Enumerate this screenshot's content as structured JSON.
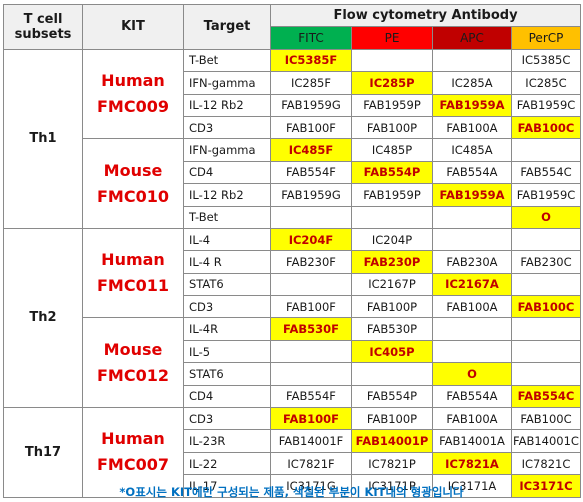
{
  "headers": {
    "subsets": "T cell subsets",
    "kit": "KIT",
    "target": "Target",
    "antibody": "Flow cytometry Antibody",
    "channels": [
      "FITC",
      "PE",
      "APC",
      "PerCP"
    ]
  },
  "groups": [
    {
      "subset": "Th1",
      "kits": [
        {
          "species": "Human",
          "code": "FMC009",
          "rows": [
            {
              "target": "T-Bet",
              "cells": [
                "IC5385F",
                "",
                "",
                "IC5385C"
              ],
              "hl": [
                true,
                false,
                false,
                false
              ]
            },
            {
              "target": "IFN-gamma",
              "cells": [
                "IC285F",
                "IC285P",
                "IC285A",
                "IC285C"
              ],
              "hl": [
                false,
                true,
                false,
                false
              ]
            },
            {
              "target": "IL-12 Rb2",
              "cells": [
                "FAB1959G",
                "FAB1959P",
                "FAB1959A",
                "FAB1959C"
              ],
              "hl": [
                false,
                false,
                true,
                false
              ]
            },
            {
              "target": "CD3",
              "cells": [
                "FAB100F",
                "FAB100P",
                "FAB100A",
                "FAB100C"
              ],
              "hl": [
                false,
                false,
                false,
                true
              ]
            }
          ]
        },
        {
          "species": "Mouse",
          "code": "FMC010",
          "rows": [
            {
              "target": "IFN-gamma",
              "cells": [
                "IC485F",
                "IC485P",
                "IC485A",
                ""
              ],
              "hl": [
                true,
                false,
                false,
                false
              ]
            },
            {
              "target": "CD4",
              "cells": [
                "FAB554F",
                "FAB554P",
                "FAB554A",
                "FAB554C"
              ],
              "hl": [
                false,
                true,
                false,
                false
              ]
            },
            {
              "target": "IL-12 Rb2",
              "cells": [
                "FAB1959G",
                "FAB1959P",
                "FAB1959A",
                "FAB1959C"
              ],
              "hl": [
                false,
                false,
                true,
                false
              ]
            },
            {
              "target": "T-Bet",
              "cells": [
                "",
                "",
                "",
                "O"
              ],
              "hl": [
                false,
                false,
                false,
                true
              ]
            }
          ]
        }
      ]
    },
    {
      "subset": "Th2",
      "kits": [
        {
          "species": "Human",
          "code": "FMC011",
          "rows": [
            {
              "target": "IL-4",
              "cells": [
                "IC204F",
                "IC204P",
                "",
                ""
              ],
              "hl": [
                true,
                false,
                false,
                false
              ]
            },
            {
              "target": "IL-4 R",
              "cells": [
                "FAB230F",
                "FAB230P",
                "FAB230A",
                "FAB230C"
              ],
              "hl": [
                false,
                true,
                false,
                false
              ]
            },
            {
              "target": "STAT6",
              "cells": [
                "",
                "IC2167P",
                "IC2167A",
                ""
              ],
              "hl": [
                false,
                false,
                true,
                false
              ]
            },
            {
              "target": "CD3",
              "cells": [
                "FAB100F",
                "FAB100P",
                "FAB100A",
                "FAB100C"
              ],
              "hl": [
                false,
                false,
                false,
                true
              ]
            }
          ]
        },
        {
          "species": "Mouse",
          "code": "FMC012",
          "rows": [
            {
              "target": "IL-4R",
              "cells": [
                "FAB530F",
                "FAB530P",
                "",
                ""
              ],
              "hl": [
                true,
                false,
                false,
                false
              ]
            },
            {
              "target": "IL-5",
              "cells": [
                "",
                "IC405P",
                "",
                ""
              ],
              "hl": [
                false,
                true,
                false,
                false
              ]
            },
            {
              "target": "STAT6",
              "cells": [
                "",
                "",
                "O",
                ""
              ],
              "hl": [
                false,
                false,
                true,
                false
              ]
            },
            {
              "target": "CD4",
              "cells": [
                "FAB554F",
                "FAB554P",
                "FAB554A",
                "FAB554C"
              ],
              "hl": [
                false,
                false,
                false,
                true
              ]
            }
          ]
        }
      ]
    },
    {
      "subset": "Th17",
      "kits": [
        {
          "species": "Human",
          "code": "FMC007",
          "rows": [
            {
              "target": "CD3",
              "cells": [
                "FAB100F",
                "FAB100P",
                "FAB100A",
                "FAB100C"
              ],
              "hl": [
                true,
                false,
                false,
                false
              ]
            },
            {
              "target": "IL-23R",
              "cells": [
                "FAB14001F",
                "FAB14001P",
                "FAB14001A",
                "FAB14001C"
              ],
              "hl": [
                false,
                true,
                false,
                false
              ]
            },
            {
              "target": "IL-22",
              "cells": [
                "IC7821F",
                "IC7821P",
                "IC7821A",
                "IC7821C"
              ],
              "hl": [
                false,
                false,
                true,
                false
              ]
            },
            {
              "target": "IL-17",
              "cells": [
                "IC3171G",
                "IC3171P",
                "IC3171A",
                "IC3171C"
              ],
              "hl": [
                false,
                false,
                false,
                true
              ]
            }
          ]
        }
      ]
    }
  ],
  "footnote": "*O표시는 KIT에만 구성되는 제품, 색칠된 부분이 KIT내의 형광입니다",
  "colors": {
    "fitc": "#00b050",
    "pe": "#ff0000",
    "apc": "#c00000",
    "percp": "#ffc000",
    "highlight": "#ffff00",
    "kit_text": "#e00000",
    "footnote": "#0070c0"
  }
}
